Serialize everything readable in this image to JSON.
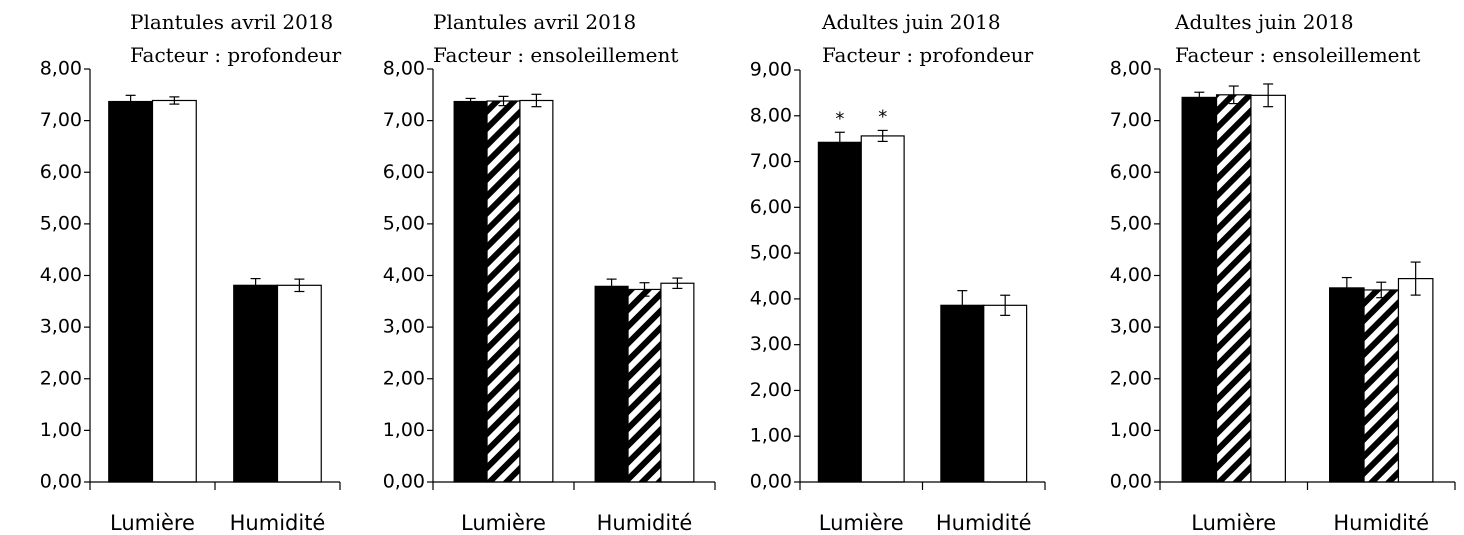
{
  "chart_data": [
    {
      "type": "bar",
      "title": "Plantules avril 2018",
      "subtitle": "Facteur : profondeur",
      "categories": [
        "Lumière",
        "Humidité"
      ],
      "series": [
        {
          "color": "#000000",
          "pattern": "solid",
          "values": [
            7.37,
            3.81
          ],
          "errors": [
            0.12,
            0.13
          ]
        },
        {
          "color": "#ffffff",
          "pattern": "solid",
          "values": [
            7.39,
            3.81
          ],
          "errors": [
            0.07,
            0.12
          ]
        }
      ],
      "ylim": [
        0,
        8
      ],
      "yticks": [
        {
          "value": 0,
          "label": "0,00"
        },
        {
          "value": 1,
          "label": "1,00"
        },
        {
          "value": 2,
          "label": "2,00"
        },
        {
          "value": 3,
          "label": "3,00"
        },
        {
          "value": 4,
          "label": "4,00"
        },
        {
          "value": 5,
          "label": "5,00"
        },
        {
          "value": 6,
          "label": "6,00"
        },
        {
          "value": 7,
          "label": "7,00"
        },
        {
          "value": 8,
          "label": "8,00"
        }
      ],
      "grid": false
    },
    {
      "type": "bar",
      "title": "Plantules avril 2018",
      "subtitle": "Facteur : ensoleillement",
      "categories": [
        "Lumière",
        "Humidité"
      ],
      "series": [
        {
          "color": "#000000",
          "pattern": "solid",
          "values": [
            7.37,
            3.79
          ],
          "errors": [
            0.06,
            0.14
          ]
        },
        {
          "color": "#000000",
          "pattern": "hatch",
          "values": [
            7.38,
            3.73
          ],
          "errors": [
            0.09,
            0.13
          ]
        },
        {
          "color": "#ffffff",
          "pattern": "solid",
          "values": [
            7.39,
            3.85
          ],
          "errors": [
            0.12,
            0.1
          ]
        }
      ],
      "ylim": [
        0,
        8
      ],
      "yticks": [
        {
          "value": 0,
          "label": "0,00"
        },
        {
          "value": 1,
          "label": "1,00"
        },
        {
          "value": 2,
          "label": "2,00"
        },
        {
          "value": 3,
          "label": "3,00"
        },
        {
          "value": 4,
          "label": "4,00"
        },
        {
          "value": 5,
          "label": "5,00"
        },
        {
          "value": 6,
          "label": "6,00"
        },
        {
          "value": 7,
          "label": "7,00"
        },
        {
          "value": 8,
          "label": "8,00"
        }
      ],
      "grid": false
    },
    {
      "type": "bar",
      "title": "Adultes juin 2018",
      "subtitle": "Facteur : profondeur",
      "categories": [
        "Lumière",
        "Humidité"
      ],
      "series": [
        {
          "color": "#000000",
          "pattern": "solid",
          "values": [
            7.42,
            3.86
          ],
          "errors": [
            0.22,
            0.32
          ],
          "annotations": [
            "*",
            null
          ]
        },
        {
          "color": "#ffffff",
          "pattern": "solid",
          "values": [
            7.56,
            3.86
          ],
          "errors": [
            0.12,
            0.22
          ],
          "annotations": [
            "*",
            null
          ]
        }
      ],
      "ylim": [
        0,
        9
      ],
      "yticks": [
        {
          "value": 0,
          "label": "0,00"
        },
        {
          "value": 1,
          "label": "1,00"
        },
        {
          "value": 2,
          "label": "2,00"
        },
        {
          "value": 3,
          "label": "3,00"
        },
        {
          "value": 4,
          "label": "4,00"
        },
        {
          "value": 5,
          "label": "5,00"
        },
        {
          "value": 6,
          "label": "6,00"
        },
        {
          "value": 7,
          "label": "7,00"
        },
        {
          "value": 8,
          "label": "8,00"
        },
        {
          "value": 9,
          "label": "9,00"
        }
      ],
      "grid": false
    },
    {
      "type": "bar",
      "title": "Adultes juin 2018",
      "subtitle": "Facteur : ensoleillement",
      "categories": [
        "Lumière",
        "Humidité"
      ],
      "series": [
        {
          "color": "#000000",
          "pattern": "solid",
          "values": [
            7.45,
            3.76
          ],
          "errors": [
            0.1,
            0.2
          ]
        },
        {
          "color": "#000000",
          "pattern": "hatch",
          "values": [
            7.5,
            3.72
          ],
          "errors": [
            0.17,
            0.15
          ]
        },
        {
          "color": "#ffffff",
          "pattern": "solid",
          "values": [
            7.49,
            3.94
          ],
          "errors": [
            0.22,
            0.32
          ]
        }
      ],
      "ylim": [
        0,
        8
      ],
      "yticks": [
        {
          "value": 0,
          "label": "0,00"
        },
        {
          "value": 1,
          "label": "1,00"
        },
        {
          "value": 2,
          "label": "2,00"
        },
        {
          "value": 3,
          "label": "3,00"
        },
        {
          "value": 4,
          "label": "4,00"
        },
        {
          "value": 5,
          "label": "5,00"
        },
        {
          "value": 6,
          "label": "6,00"
        },
        {
          "value": 7,
          "label": "7,00"
        },
        {
          "value": 8,
          "label": "8,00"
        }
      ],
      "grid": false
    }
  ]
}
